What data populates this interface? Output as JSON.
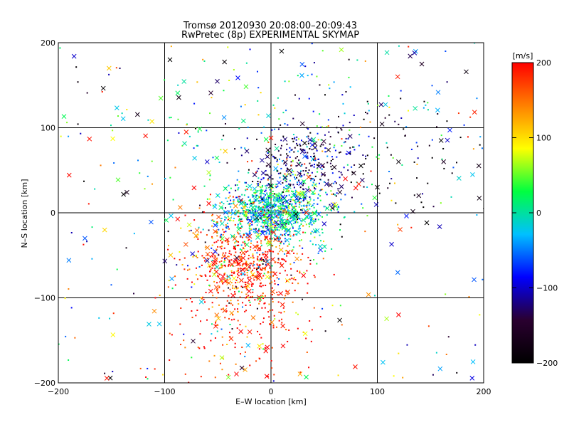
{
  "chart_data": {
    "type": "scatter",
    "title": "Tromsø 20120930 20:08:00–20:09:43",
    "subtitle": "RwPretec (8p) EXPERIMENTAL SKYMAP",
    "xlabel": "E–W location [km]",
    "ylabel": "N–S location [km]",
    "xlim": [
      -200,
      200
    ],
    "ylim": [
      -200,
      200
    ],
    "x_ticks": [
      -200,
      -100,
      0,
      100,
      200
    ],
    "y_ticks": [
      -200,
      -100,
      0,
      100,
      200
    ],
    "grid": true,
    "markers": "dots and x-crosses, colored by line-of-sight velocity",
    "colorbar": {
      "label": "[m/s]",
      "range": [
        -200,
        200
      ],
      "ticks": [
        200,
        100,
        0,
        -100,
        -200
      ],
      "colormap": [
        "#000000",
        "#2a0030",
        "#0000ff",
        "#00c0ff",
        "#00ff40",
        "#ffff00",
        "#ff8000",
        "#ff0000"
      ]
    },
    "clusters": [
      {
        "center": [
          0,
          0
        ],
        "spread": [
          25,
          18
        ],
        "velocity": -10,
        "description": "dense green/cyan core"
      },
      {
        "center": [
          -25,
          -60
        ],
        "spread": [
          30,
          30
        ],
        "velocity": 190,
        "description": "red cluster south"
      },
      {
        "center": [
          30,
          55
        ],
        "spread": [
          25,
          25
        ],
        "velocity": -120,
        "description": "blue cluster north-east"
      },
      {
        "center": [
          0,
          85
        ],
        "spread": [
          90,
          50
        ],
        "velocity": 0,
        "description": "sparse northern band"
      },
      {
        "center": [
          110,
          60
        ],
        "spread": [
          60,
          40
        ],
        "velocity": -200,
        "description": "black points north-east"
      },
      {
        "center": [
          -20,
          -140
        ],
        "spread": [
          35,
          40
        ],
        "velocity": 190,
        "description": "red tail south"
      }
    ],
    "sample_points": [
      {
        "x": 10,
        "y": 190,
        "v": -200
      },
      {
        "x": 135,
        "y": 188,
        "v": -110
      },
      {
        "x": -95,
        "y": 180,
        "v": -200
      },
      {
        "x": 160,
        "y": 85,
        "v": -200
      },
      {
        "x": 120,
        "y": 60,
        "v": -190
      },
      {
        "x": 0,
        "y": 88,
        "v": 190
      },
      {
        "x": -60,
        "y": 60,
        "v": -100
      },
      {
        "x": 70,
        "y": 40,
        "v": 200
      },
      {
        "x": 60,
        "y": 10,
        "v": 90
      },
      {
        "x": 100,
        "y": 30,
        "v": -200
      },
      {
        "x": -10,
        "y": 5,
        "v": 0
      },
      {
        "x": 15,
        "y": -10,
        "v": 10
      },
      {
        "x": -30,
        "y": -60,
        "v": 200
      },
      {
        "x": -20,
        "y": -140,
        "v": 190
      },
      {
        "x": 120,
        "y": -120,
        "v": 200
      },
      {
        "x": -175,
        "y": -30,
        "v": -60
      }
    ]
  }
}
